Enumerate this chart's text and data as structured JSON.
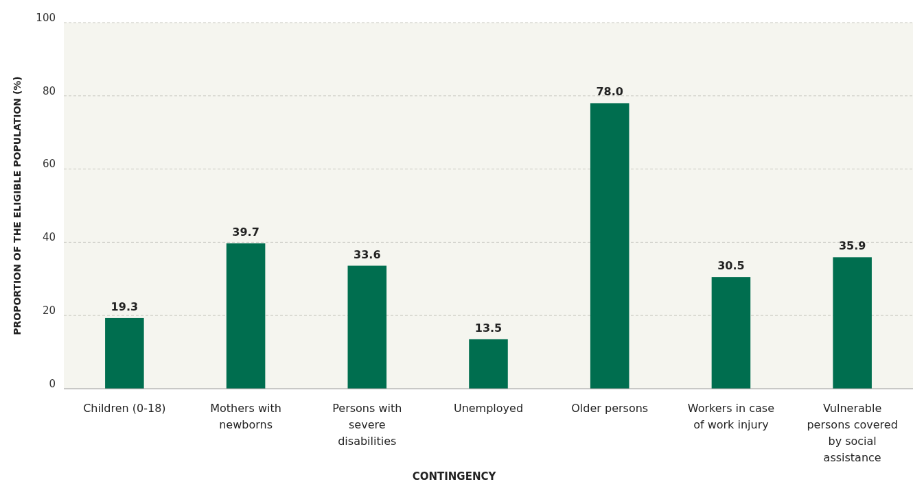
{
  "chart_data": {
    "type": "bar",
    "xlabel": "CONTINGENCY",
    "ylabel": "PROPORTION OF THE ELIGIBLE POPULATION (%)",
    "categories": [
      "Children (0-18)",
      "Mothers with newborns",
      "Persons with severe disabilities",
      "Unemployed",
      "Older persons",
      "Workers in case of work injury",
      "Vulnerable persons covered by social assistance"
    ],
    "values": [
      19.3,
      39.7,
      33.6,
      13.5,
      78.0,
      30.5,
      35.9
    ],
    "value_labels": [
      "19.3",
      "39.7",
      "33.6",
      "13.5",
      "78.0",
      "30.5",
      "35.9"
    ],
    "color": "#006e4f",
    "ylim": [
      0,
      100
    ],
    "yticks": [
      0,
      20,
      40,
      60,
      80,
      100
    ],
    "grid": "y"
  }
}
